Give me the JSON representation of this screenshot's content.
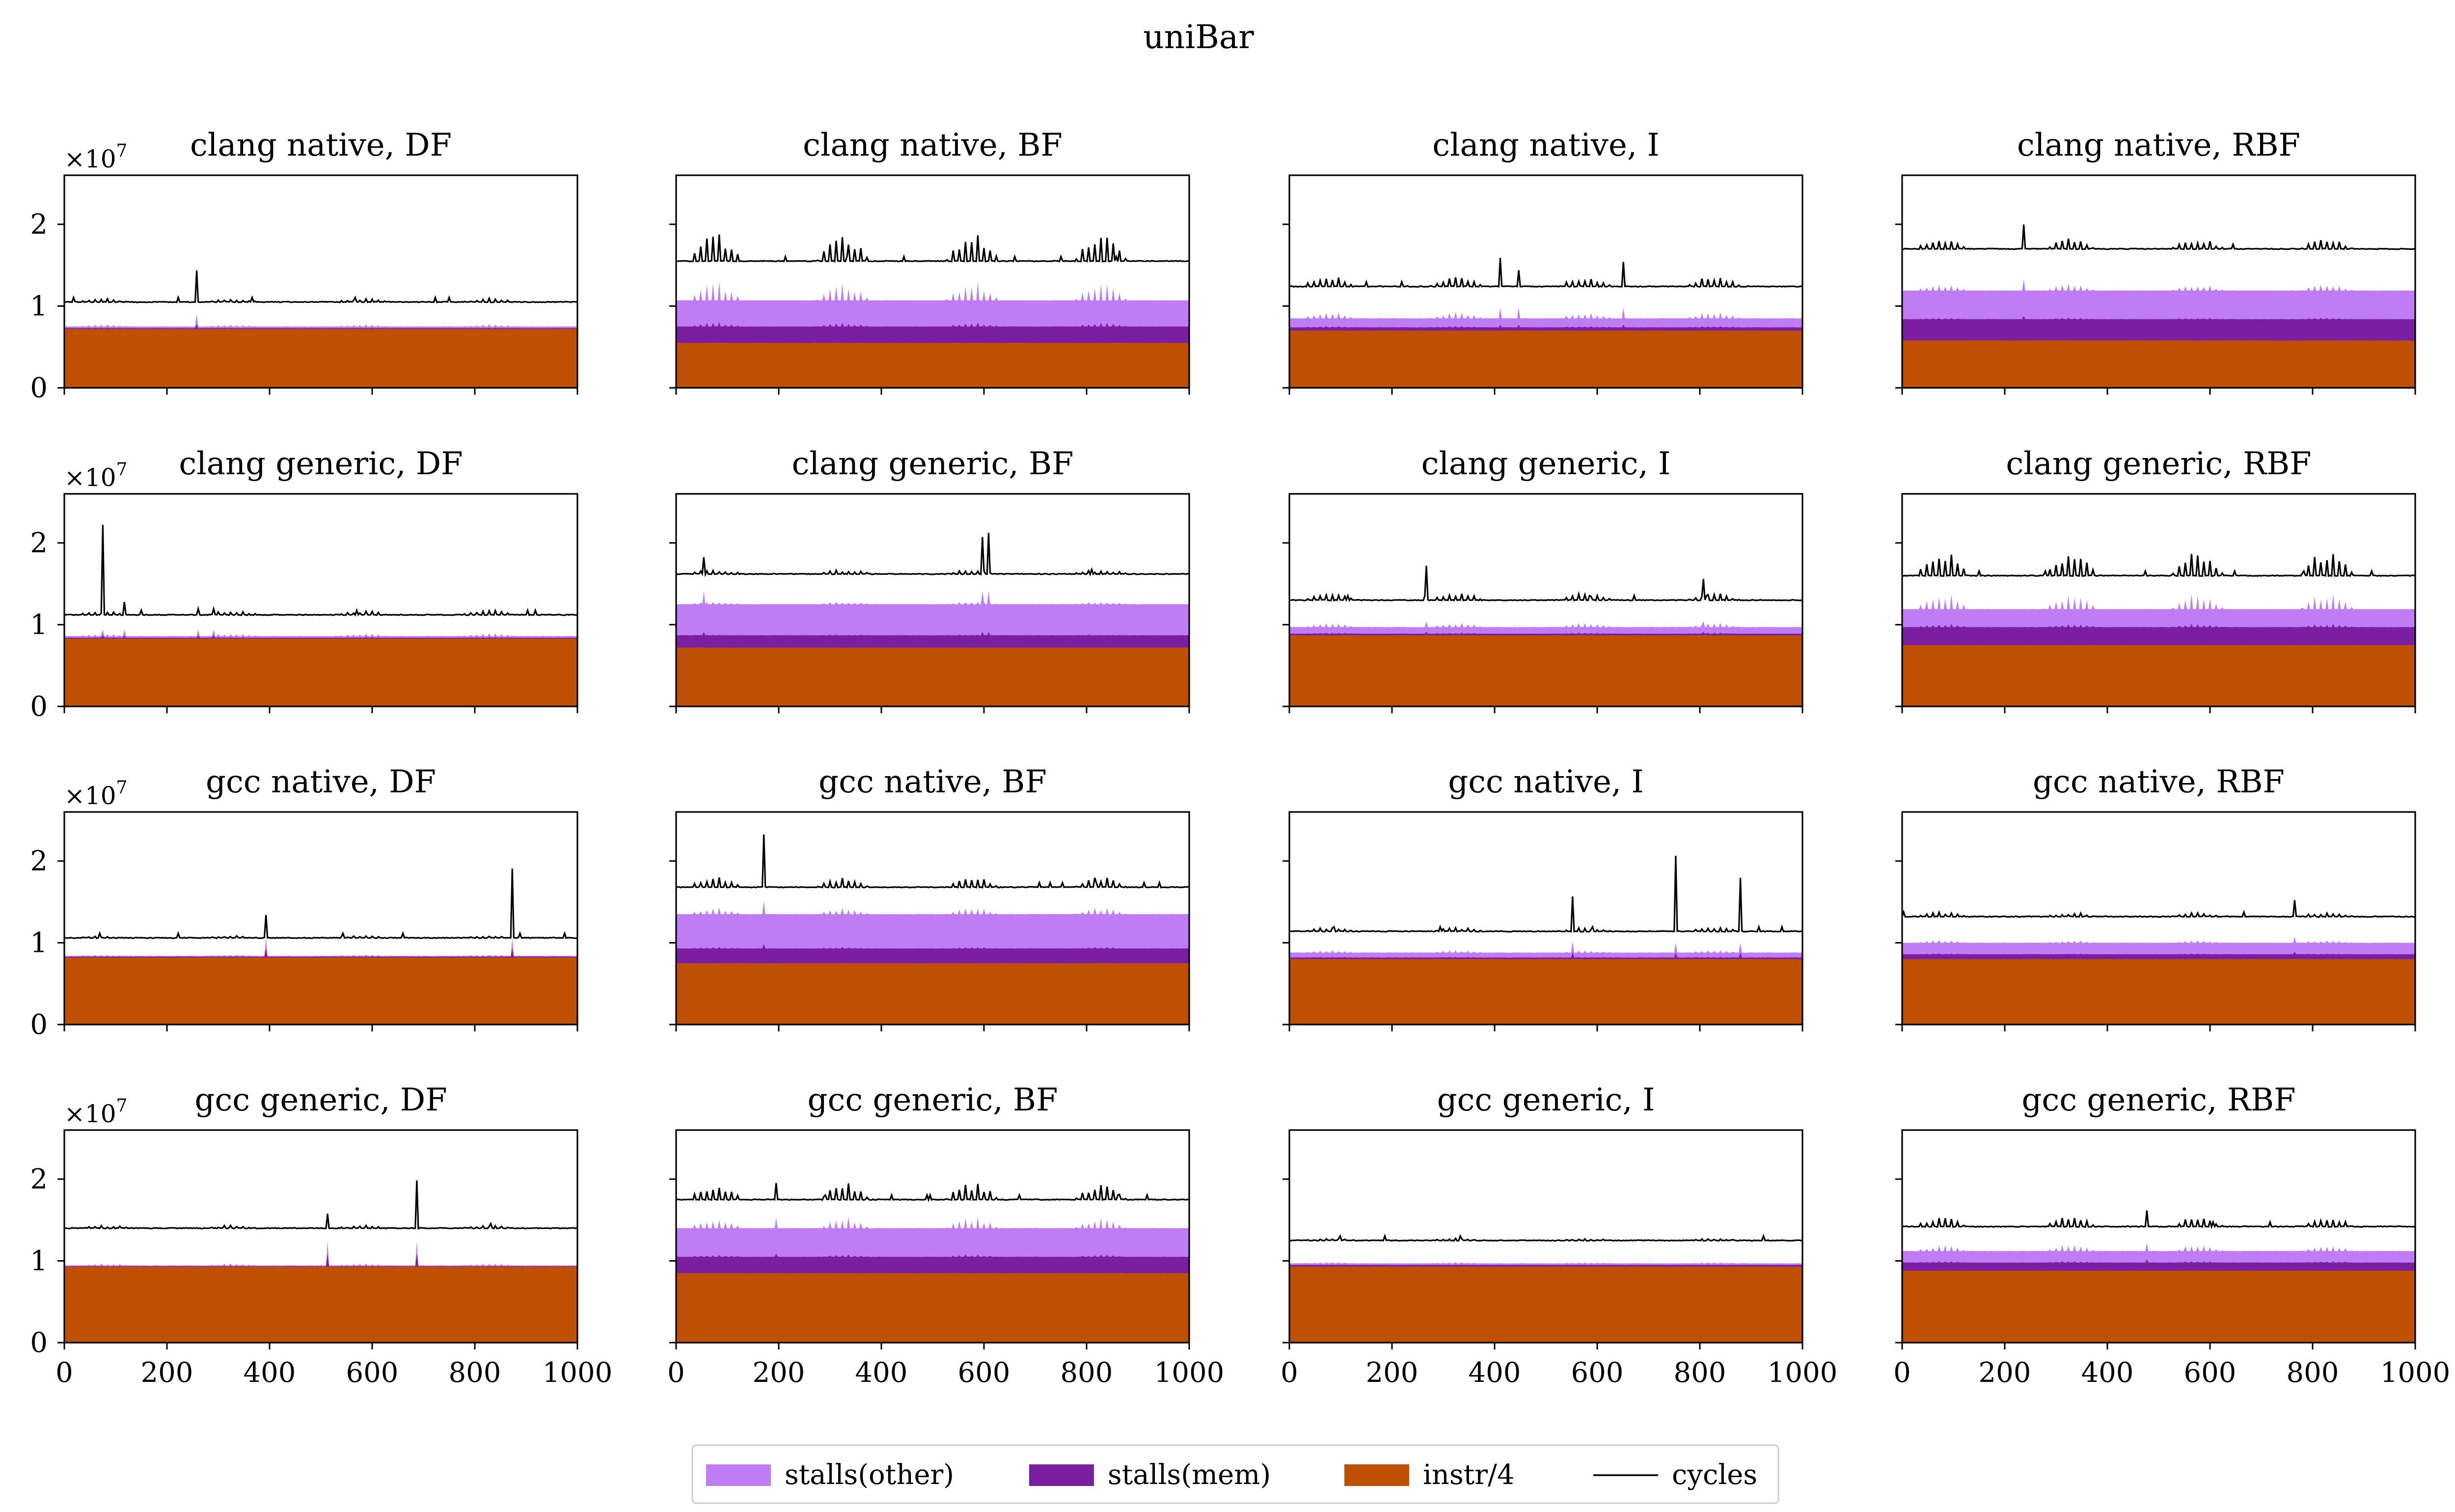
{
  "figure": {
    "title": "uniBar"
  },
  "colors": {
    "stalls_other": "#bf7cf5",
    "stalls_mem": "#7b1fa2",
    "instr": "#bf5003",
    "cycles": "#000000"
  },
  "legend": {
    "items": [
      {
        "label": "stalls(other)",
        "kind": "patch",
        "color_key": "stalls_other"
      },
      {
        "label": "stalls(mem)",
        "kind": "patch",
        "color_key": "stalls_mem"
      },
      {
        "label": "instr/4",
        "kind": "patch",
        "color_key": "instr"
      },
      {
        "label": "cycles",
        "kind": "line",
        "color_key": "cycles"
      }
    ]
  },
  "axes_common": {
    "offset_text": "×10",
    "offset_exp": "7",
    "xlim": [
      0,
      1000
    ],
    "ylim": [
      0,
      2.6
    ],
    "xticks": [
      0,
      200,
      400,
      600,
      800,
      1000
    ],
    "yticks": [
      0,
      1,
      2
    ]
  },
  "chart_data": [
    {
      "type": "area",
      "title": "clang native, DF",
      "instr": 0.72,
      "mem": 0.01,
      "other": 0.02,
      "cycles": 1.05,
      "mod": 0.04,
      "mem_spike": 0.05,
      "other_spike": 0.1,
      "spikes": [
        {
          "x": 258,
          "h": 0.38
        }
      ]
    },
    {
      "type": "area",
      "title": "clang native, BF",
      "instr": 0.55,
      "mem": 0.2,
      "other": 0.32,
      "cycles": 1.55,
      "mod": 0.33,
      "mem_spike": 0.05,
      "other_spike": 0.18,
      "spikes": []
    },
    {
      "type": "area",
      "title": "clang native, I",
      "instr": 0.7,
      "mem": 0.04,
      "other": 0.11,
      "cycles": 1.24,
      "mod": 0.12,
      "mem_spike": 0.03,
      "other_spike": 0.1,
      "spikes": [
        {
          "x": 412,
          "h": 0.35
        },
        {
          "x": 446,
          "h": 0.2
        },
        {
          "x": 652,
          "h": 0.3
        }
      ]
    },
    {
      "type": "area",
      "title": "clang native, RBF",
      "instr": 0.58,
      "mem": 0.26,
      "other": 0.35,
      "cycles": 1.7,
      "mod": 0.12,
      "mem_spike": 0.04,
      "other_spike": 0.1,
      "spikes": [
        {
          "x": 236,
          "h": 0.3
        }
      ]
    },
    {
      "type": "area",
      "title": "clang generic, DF",
      "instr": 0.83,
      "mem": 0.01,
      "other": 0.02,
      "cycles": 1.12,
      "mod": 0.05,
      "mem_spike": 0.03,
      "other_spike": 0.05,
      "spikes": [
        {
          "x": 76,
          "h": 1.1
        },
        {
          "x": 118,
          "h": 0.16
        },
        {
          "x": 262,
          "h": 0.07
        },
        {
          "x": 290,
          "h": 0.07
        }
      ]
    },
    {
      "type": "area",
      "title": "clang generic, BF",
      "instr": 0.72,
      "mem": 0.15,
      "other": 0.38,
      "cycles": 1.62,
      "mod": 0.05,
      "mem_spike": 0.04,
      "other_spike": 0.12,
      "spikes": [
        {
          "x": 55,
          "h": 0.2
        },
        {
          "x": 596,
          "h": 0.45
        },
        {
          "x": 608,
          "h": 0.5
        }
      ]
    },
    {
      "type": "area",
      "title": "clang generic, I",
      "instr": 0.87,
      "mem": 0.02,
      "other": 0.08,
      "cycles": 1.3,
      "mod": 0.08,
      "mem_spike": 0.02,
      "other_spike": 0.05,
      "spikes": [
        {
          "x": 268,
          "h": 0.42
        },
        {
          "x": 806,
          "h": 0.26
        }
      ]
    },
    {
      "type": "area",
      "title": "clang generic, RBF",
      "instr": 0.75,
      "mem": 0.22,
      "other": 0.22,
      "cycles": 1.6,
      "mod": 0.3,
      "mem_spike": 0.04,
      "other_spike": 0.18,
      "spikes": []
    },
    {
      "type": "area",
      "title": "gcc native, DF",
      "instr": 0.82,
      "mem": 0.01,
      "other": 0.01,
      "cycles": 1.06,
      "mod": 0.02,
      "mem_spike": 0.1,
      "other_spike": 0.12,
      "spikes": [
        {
          "x": 392,
          "h": 0.28
        },
        {
          "x": 872,
          "h": 0.85
        }
      ]
    },
    {
      "type": "area",
      "title": "gcc native, BF",
      "instr": 0.75,
      "mem": 0.18,
      "other": 0.42,
      "cycles": 1.68,
      "mod": 0.12,
      "mem_spike": 0.06,
      "other_spike": 0.1,
      "spikes": [
        {
          "x": 170,
          "h": 0.65
        }
      ]
    },
    {
      "type": "area",
      "title": "gcc native, I",
      "instr": 0.8,
      "mem": 0.02,
      "other": 0.06,
      "cycles": 1.14,
      "mod": 0.04,
      "mem_spike": 0.06,
      "other_spike": 0.06,
      "spikes": [
        {
          "x": 552,
          "h": 0.4
        },
        {
          "x": 752,
          "h": 0.92
        },
        {
          "x": 880,
          "h": 0.65
        }
      ]
    },
    {
      "type": "area",
      "title": "gcc native, RBF",
      "instr": 0.8,
      "mem": 0.06,
      "other": 0.14,
      "cycles": 1.32,
      "mod": 0.05,
      "mem_spike": 0.03,
      "other_spike": 0.04,
      "spikes": [
        {
          "x": 766,
          "h": 0.2
        }
      ]
    },
    {
      "type": "area",
      "title": "gcc generic, DF",
      "instr": 0.93,
      "mem": 0.005,
      "other": 0.01,
      "cycles": 1.4,
      "mod": 0.03,
      "mem_spike": 0.15,
      "other_spike": 0.15,
      "spikes": [
        {
          "x": 513,
          "h": 0.18
        },
        {
          "x": 688,
          "h": 0.58
        }
      ]
    },
    {
      "type": "area",
      "title": "gcc generic, BF",
      "instr": 0.85,
      "mem": 0.2,
      "other": 0.35,
      "cycles": 1.75,
      "mod": 0.2,
      "mem_spike": 0.04,
      "other_spike": 0.08,
      "spikes": [
        {
          "x": 196,
          "h": 0.2
        }
      ]
    },
    {
      "type": "area",
      "title": "gcc generic, I",
      "instr": 0.93,
      "mem": 0.02,
      "other": 0.02,
      "cycles": 1.25,
      "mod": 0.02,
      "mem_spike": 0.01,
      "other_spike": 0.01,
      "spikes": []
    },
    {
      "type": "area",
      "title": "gcc generic, RBF",
      "instr": 0.88,
      "mem": 0.1,
      "other": 0.14,
      "cycles": 1.42,
      "mod": 0.12,
      "mem_spike": 0.04,
      "other_spike": 0.06,
      "spikes": [
        {
          "x": 478,
          "h": 0.2
        }
      ]
    }
  ]
}
